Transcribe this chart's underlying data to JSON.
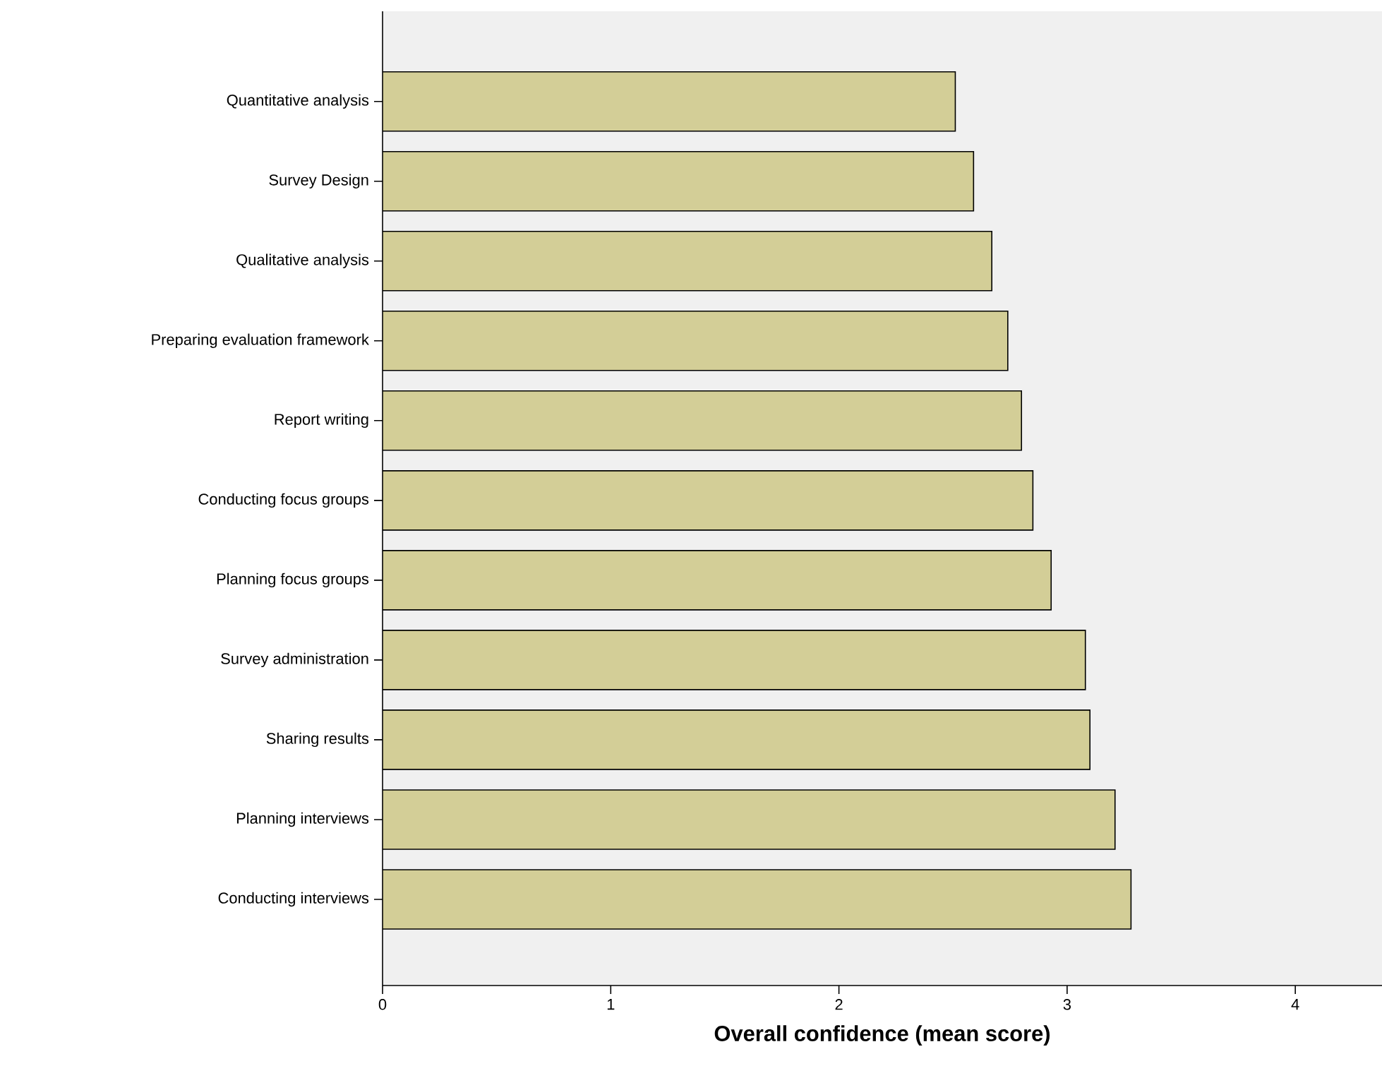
{
  "chart_data": {
    "type": "bar",
    "orientation": "horizontal",
    "xlabel": "Overall confidence (mean score)",
    "categories": [
      "Quantitative analysis",
      "Survey Design",
      "Qualitative analysis",
      "Preparing evaluation framework",
      "Report writing",
      "Conducting focus groups",
      "Planning focus groups",
      "Survey administration",
      "Sharing results",
      "Planning interviews",
      "Conducting interviews"
    ],
    "values": [
      2.51,
      2.59,
      2.67,
      2.74,
      2.8,
      2.85,
      2.93,
      3.08,
      3.1,
      3.21,
      3.28
    ],
    "color": "#d3ce97",
    "xlim": [
      0,
      4.38
    ],
    "xticks": [
      0,
      1,
      2,
      3,
      4
    ],
    "grid": false
  }
}
